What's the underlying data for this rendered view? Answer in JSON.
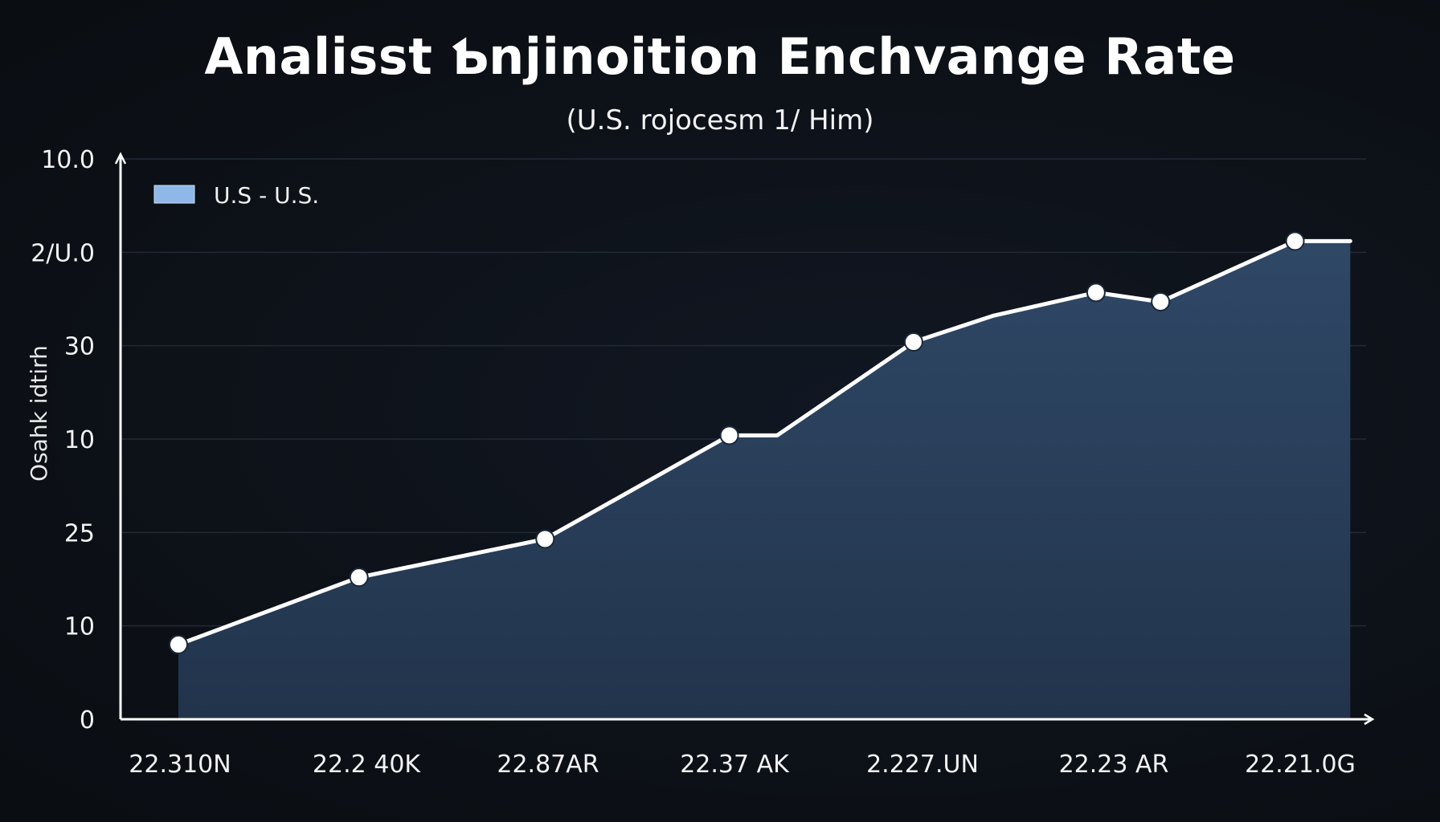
{
  "chart_data": {
    "type": "area",
    "title": "Analisst Ƅnjinoition Enchvange Rate",
    "subtitle": "(U.S. rojocesm 1/ Him)",
    "ylabel": "Osahk idtirh",
    "xlabel": "",
    "legend": {
      "label": "U.S - U.S.",
      "placement": "top-left",
      "color": "#8fb8e8"
    },
    "grid": true,
    "y_tick_labels": [
      "0",
      "10",
      "25",
      "10",
      "30",
      "2/U.0",
      "10.0"
    ],
    "x_tick_labels": [
      "22.310N",
      "22.2 40K",
      "22.87AR",
      "22.37 AK",
      "2.227.UN",
      "22.23 AR",
      "22.21.0G"
    ],
    "ylim": [
      0,
      6
    ],
    "xlim": [
      0,
      6.4
    ],
    "series": [
      {
        "name": "U.S - U.S.",
        "color": "#ffffff",
        "fill": "#2a3f5a",
        "points": [
          {
            "x": 0.0,
            "y": 0.8,
            "marker": true
          },
          {
            "x": 0.98,
            "y": 1.52,
            "marker": true
          },
          {
            "x": 1.99,
            "y": 1.93,
            "marker": true
          },
          {
            "x": 2.99,
            "y": 3.04,
            "marker": true
          },
          {
            "x": 3.25,
            "y": 3.04,
            "marker": false
          },
          {
            "x": 3.99,
            "y": 4.04,
            "marker": true
          },
          {
            "x": 4.42,
            "y": 4.32,
            "marker": false
          },
          {
            "x": 4.98,
            "y": 4.57,
            "marker": true
          },
          {
            "x": 5.33,
            "y": 4.47,
            "marker": true
          },
          {
            "x": 6.06,
            "y": 5.12,
            "marker": true
          },
          {
            "x": 6.36,
            "y": 5.12,
            "marker": false
          }
        ]
      }
    ],
    "colors": {
      "background": "#0d1117",
      "grid": "#222a36",
      "axis": "#ffffff",
      "line": "#ffffff",
      "area": "#2a3f5a"
    }
  }
}
